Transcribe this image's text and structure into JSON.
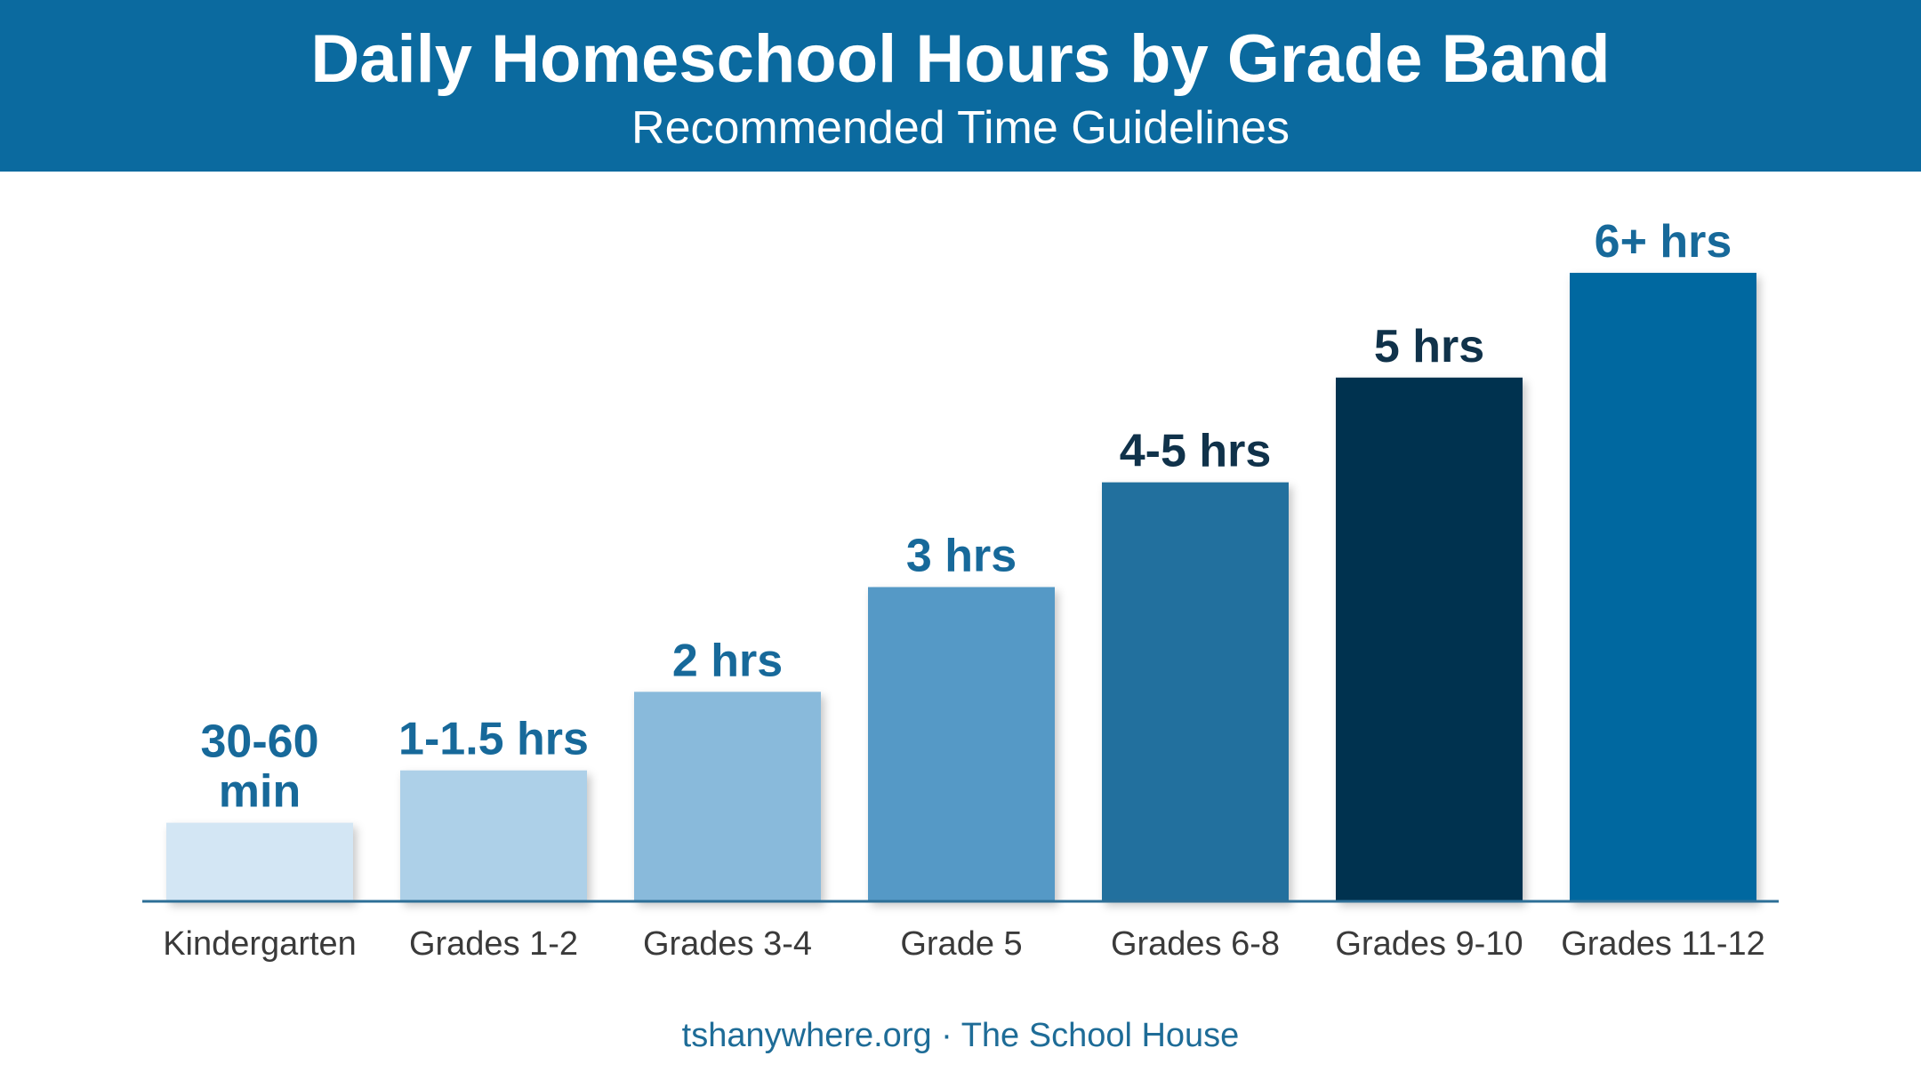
{
  "header": {
    "title": "Daily Homeschool Hours by Grade Band",
    "subtitle": "Recommended Time Guidelines"
  },
  "footer": {
    "credit": "tshanywhere.org · The School House"
  },
  "colors": {
    "header_bg": "#0b6a9f",
    "label_blue": "#17699a",
    "label_dark": "#10324a",
    "axis": "#2d6f97",
    "tick_text": "#3a3a3a"
  },
  "chart_data": {
    "type": "bar",
    "title": "Daily Homeschool Hours by Grade Band",
    "subtitle": "Recommended Time Guidelines",
    "xlabel": "",
    "ylabel": "",
    "ylim": [
      0,
      6.5
    ],
    "grid": false,
    "legend": "none",
    "categories": [
      "Kindergarten",
      "Grades 1-2",
      "Grades 3-4",
      "Grade 5",
      "Grades 6-8",
      "Grades 9-10",
      "Grades 11-12"
    ],
    "values": [
      0.75,
      1.25,
      2,
      3,
      4,
      5,
      6
    ],
    "data_labels": [
      [
        "30-60",
        "min"
      ],
      [
        "1-1.5 hrs"
      ],
      [
        "2 hrs"
      ],
      [
        "3 hrs"
      ],
      [
        "4-5 hrs"
      ],
      [
        "5 hrs"
      ],
      [
        "6+ hrs"
      ]
    ],
    "bar_colors": [
      "#d3e6f4",
      "#add0e8",
      "#89badb",
      "#5499c6",
      "#22709e",
      "#05334f",
      "#0668a0"
    ],
    "label_colors": [
      "#17699a",
      "#17699a",
      "#17699a",
      "#17699a",
      "#10324a",
      "#10324a",
      "#17699a"
    ]
  }
}
